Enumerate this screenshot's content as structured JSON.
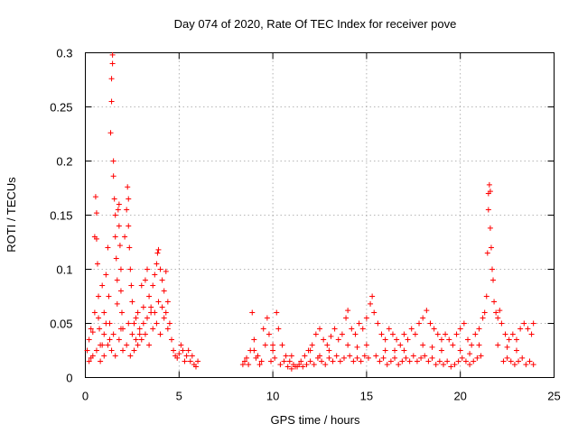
{
  "chart_data": {
    "type": "scatter",
    "title": "Day 074 of 2020, Rate Of TEC Index for receiver pove",
    "xlabel": "GPS time / hours",
    "ylabel": "ROTI / TECUs",
    "xlim": [
      0,
      25
    ],
    "ylim": [
      0,
      0.3
    ],
    "xticks": [
      "0",
      "5",
      "10",
      "15",
      "20",
      "25"
    ],
    "yticks": [
      "0",
      "0.05",
      "0.1",
      "0.15",
      "0.2",
      "0.25",
      "0.3"
    ],
    "grid": true,
    "marker": "+",
    "color": "#ff0000",
    "series": [
      {
        "points": [
          [
            0.1,
            0.025
          ],
          [
            0.2,
            0.035
          ],
          [
            0.3,
            0.018
          ],
          [
            0.4,
            0.042
          ],
          [
            0.5,
            0.06
          ],
          [
            0.5,
            0.13
          ],
          [
            0.55,
            0.167
          ],
          [
            0.6,
            0.152
          ],
          [
            0.6,
            0.128
          ],
          [
            0.65,
            0.105
          ],
          [
            0.7,
            0.075
          ],
          [
            0.75,
            0.045
          ],
          [
            0.8,
            0.03
          ],
          [
            0.9,
            0.085
          ],
          [
            1.0,
            0.06
          ],
          [
            1.0,
            0.04
          ],
          [
            1.1,
            0.095
          ],
          [
            1.2,
            0.12
          ],
          [
            1.25,
            0.075
          ],
          [
            1.3,
            0.05
          ],
          [
            1.35,
            0.226
          ],
          [
            1.4,
            0.255
          ],
          [
            1.4,
            0.276
          ],
          [
            1.45,
            0.29
          ],
          [
            1.45,
            0.298
          ],
          [
            1.5,
            0.2
          ],
          [
            1.5,
            0.186
          ],
          [
            1.55,
            0.165
          ],
          [
            1.6,
            0.15
          ],
          [
            1.6,
            0.13
          ],
          [
            1.65,
            0.11
          ],
          [
            1.7,
            0.09
          ],
          [
            1.7,
            0.068
          ],
          [
            1.75,
            0.155
          ],
          [
            1.8,
            0.16
          ],
          [
            1.8,
            0.14
          ],
          [
            1.85,
            0.122
          ],
          [
            1.9,
            0.1
          ],
          [
            1.9,
            0.08
          ],
          [
            1.95,
            0.06
          ],
          [
            2.0,
            0.045
          ],
          [
            2.1,
            0.13
          ],
          [
            2.2,
            0.155
          ],
          [
            2.25,
            0.176
          ],
          [
            2.3,
            0.165
          ],
          [
            2.3,
            0.14
          ],
          [
            2.35,
            0.12
          ],
          [
            2.4,
            0.1
          ],
          [
            2.45,
            0.085
          ],
          [
            2.5,
            0.07
          ],
          [
            2.6,
            0.05
          ],
          [
            2.7,
            0.035
          ],
          [
            2.8,
            0.06
          ],
          [
            2.9,
            0.04
          ],
          [
            3.0,
            0.085
          ],
          [
            3.1,
            0.065
          ],
          [
            3.2,
            0.09
          ],
          [
            3.3,
            0.1
          ],
          [
            3.4,
            0.075
          ],
          [
            3.5,
            0.06
          ],
          [
            3.6,
            0.085
          ],
          [
            3.7,
            0.095
          ],
          [
            3.8,
            0.105
          ],
          [
            3.85,
            0.115
          ],
          [
            3.9,
            0.118
          ],
          [
            4.0,
            0.1
          ],
          [
            4.1,
            0.09
          ],
          [
            4.2,
            0.08
          ],
          [
            4.3,
            0.098
          ],
          [
            4.4,
            0.07
          ],
          [
            4.5,
            0.05
          ],
          [
            4.6,
            0.035
          ],
          [
            4.7,
            0.025
          ],
          [
            4.8,
            0.02
          ],
          [
            4.9,
            0.018
          ],
          [
            5.0,
            0.022
          ],
          [
            5.2,
            0.025
          ],
          [
            5.4,
            0.02
          ],
          [
            5.6,
            0.015
          ],
          [
            5.8,
            0.012
          ],
          [
            6.0,
            0.015
          ],
          [
            5.1,
            0.03
          ],
          [
            5.3,
            0.015
          ],
          [
            5.5,
            0.025
          ],
          [
            5.7,
            0.02
          ],
          [
            5.9,
            0.01
          ],
          [
            0.2,
            0.015
          ],
          [
            0.4,
            0.02
          ],
          [
            0.6,
            0.025
          ],
          [
            0.8,
            0.015
          ],
          [
            1.0,
            0.02
          ],
          [
            1.2,
            0.03
          ],
          [
            1.4,
            0.025
          ],
          [
            1.6,
            0.02
          ],
          [
            1.8,
            0.035
          ],
          [
            2.0,
            0.025
          ],
          [
            2.2,
            0.03
          ],
          [
            2.4,
            0.02
          ],
          [
            2.6,
            0.025
          ],
          [
            2.8,
            0.03
          ],
          [
            3.0,
            0.035
          ],
          [
            3.2,
            0.04
          ],
          [
            3.4,
            0.03
          ],
          [
            3.6,
            0.045
          ],
          [
            3.8,
            0.05
          ],
          [
            4.0,
            0.04
          ],
          [
            4.2,
            0.055
          ],
          [
            4.4,
            0.045
          ],
          [
            0.3,
            0.045
          ],
          [
            0.7,
            0.055
          ],
          [
            1.1,
            0.05
          ],
          [
            1.5,
            0.04
          ],
          [
            1.9,
            0.045
          ],
          [
            2.3,
            0.05
          ],
          [
            2.7,
            0.055
          ],
          [
            3.1,
            0.05
          ],
          [
            3.5,
            0.065
          ],
          [
            3.9,
            0.07
          ],
          [
            4.3,
            0.06
          ],
          [
            2.5,
            0.04
          ],
          [
            2.9,
            0.045
          ],
          [
            3.3,
            0.055
          ],
          [
            3.7,
            0.06
          ],
          [
            4.1,
            0.065
          ],
          [
            1.3,
            0.035
          ],
          [
            0.9,
            0.03
          ],
          [
            8.4,
            0.012
          ],
          [
            8.6,
            0.018
          ],
          [
            8.8,
            0.025
          ],
          [
            8.9,
            0.06
          ],
          [
            9.0,
            0.035
          ],
          [
            9.2,
            0.02
          ],
          [
            9.4,
            0.015
          ],
          [
            9.5,
            0.045
          ],
          [
            9.6,
            0.03
          ],
          [
            9.7,
            0.055
          ],
          [
            9.8,
            0.04
          ],
          [
            10.0,
            0.025
          ],
          [
            10.2,
            0.06
          ],
          [
            10.3,
            0.045
          ],
          [
            10.5,
            0.03
          ],
          [
            10.7,
            0.02
          ],
          [
            10.9,
            0.015
          ],
          [
            11.1,
            0.012
          ],
          [
            11.3,
            0.01
          ],
          [
            11.5,
            0.015
          ],
          [
            11.7,
            0.02
          ],
          [
            11.9,
            0.025
          ],
          [
            12.1,
            0.03
          ],
          [
            12.3,
            0.04
          ],
          [
            12.5,
            0.045
          ],
          [
            12.7,
            0.035
          ],
          [
            12.9,
            0.03
          ],
          [
            13.1,
            0.038
          ],
          [
            13.3,
            0.045
          ],
          [
            13.5,
            0.035
          ],
          [
            13.7,
            0.04
          ],
          [
            13.9,
            0.055
          ],
          [
            14.0,
            0.062
          ],
          [
            14.2,
            0.045
          ],
          [
            14.4,
            0.04
          ],
          [
            14.6,
            0.05
          ],
          [
            14.8,
            0.045
          ],
          [
            15.0,
            0.055
          ],
          [
            15.2,
            0.068
          ],
          [
            15.3,
            0.075
          ],
          [
            15.4,
            0.06
          ],
          [
            15.6,
            0.05
          ],
          [
            15.8,
            0.04
          ],
          [
            16.0,
            0.035
          ],
          [
            16.2,
            0.045
          ],
          [
            16.4,
            0.04
          ],
          [
            16.6,
            0.035
          ],
          [
            16.8,
            0.03
          ],
          [
            17.0,
            0.04
          ],
          [
            17.2,
            0.035
          ],
          [
            17.4,
            0.045
          ],
          [
            17.6,
            0.04
          ],
          [
            17.8,
            0.05
          ],
          [
            18.0,
            0.055
          ],
          [
            18.2,
            0.062
          ],
          [
            18.4,
            0.05
          ],
          [
            18.6,
            0.045
          ],
          [
            18.8,
            0.04
          ],
          [
            19.0,
            0.035
          ],
          [
            19.2,
            0.04
          ],
          [
            19.4,
            0.035
          ],
          [
            19.6,
            0.03
          ],
          [
            19.8,
            0.04
          ],
          [
            20.0,
            0.045
          ],
          [
            20.2,
            0.05
          ],
          [
            20.4,
            0.035
          ],
          [
            20.6,
            0.03
          ],
          [
            20.8,
            0.04
          ],
          [
            21.0,
            0.045
          ],
          [
            21.2,
            0.055
          ],
          [
            21.3,
            0.06
          ],
          [
            21.4,
            0.075
          ],
          [
            21.45,
            0.115
          ],
          [
            21.5,
            0.155
          ],
          [
            21.5,
            0.17
          ],
          [
            21.55,
            0.178
          ],
          [
            21.6,
            0.172
          ],
          [
            21.6,
            0.138
          ],
          [
            21.65,
            0.12
          ],
          [
            21.7,
            0.1
          ],
          [
            21.75,
            0.09
          ],
          [
            21.8,
            0.07
          ],
          [
            21.9,
            0.06
          ],
          [
            22.0,
            0.055
          ],
          [
            22.1,
            0.062
          ],
          [
            22.2,
            0.05
          ],
          [
            22.4,
            0.04
          ],
          [
            22.6,
            0.035
          ],
          [
            22.8,
            0.04
          ],
          [
            23.0,
            0.035
          ],
          [
            23.2,
            0.045
          ],
          [
            23.4,
            0.05
          ],
          [
            23.6,
            0.045
          ],
          [
            23.8,
            0.04
          ],
          [
            23.9,
            0.05
          ],
          [
            8.5,
            0.015
          ],
          [
            8.7,
            0.012
          ],
          [
            9.1,
            0.018
          ],
          [
            9.3,
            0.012
          ],
          [
            9.9,
            0.015
          ],
          [
            10.1,
            0.018
          ],
          [
            10.4,
            0.012
          ],
          [
            10.6,
            0.015
          ],
          [
            10.8,
            0.01
          ],
          [
            11.0,
            0.008
          ],
          [
            11.2,
            0.01
          ],
          [
            11.4,
            0.012
          ],
          [
            11.6,
            0.01
          ],
          [
            11.8,
            0.012
          ],
          [
            12.0,
            0.015
          ],
          [
            12.2,
            0.012
          ],
          [
            12.4,
            0.018
          ],
          [
            12.6,
            0.015
          ],
          [
            12.8,
            0.012
          ],
          [
            13.0,
            0.018
          ],
          [
            13.2,
            0.015
          ],
          [
            13.4,
            0.02
          ],
          [
            13.6,
            0.015
          ],
          [
            13.8,
            0.018
          ],
          [
            14.1,
            0.02
          ],
          [
            14.3,
            0.015
          ],
          [
            14.5,
            0.018
          ],
          [
            14.7,
            0.015
          ],
          [
            14.9,
            0.02
          ],
          [
            15.1,
            0.018
          ],
          [
            15.5,
            0.02
          ],
          [
            15.7,
            0.015
          ],
          [
            15.9,
            0.018
          ],
          [
            16.1,
            0.012
          ],
          [
            16.3,
            0.015
          ],
          [
            16.5,
            0.018
          ],
          [
            16.7,
            0.012
          ],
          [
            16.9,
            0.015
          ],
          [
            17.1,
            0.018
          ],
          [
            17.3,
            0.015
          ],
          [
            17.5,
            0.02
          ],
          [
            17.7,
            0.015
          ],
          [
            17.9,
            0.018
          ],
          [
            18.1,
            0.02
          ],
          [
            18.3,
            0.015
          ],
          [
            18.5,
            0.018
          ],
          [
            18.7,
            0.012
          ],
          [
            18.9,
            0.015
          ],
          [
            19.1,
            0.012
          ],
          [
            19.3,
            0.015
          ],
          [
            19.5,
            0.01
          ],
          [
            19.7,
            0.012
          ],
          [
            19.9,
            0.015
          ],
          [
            20.1,
            0.018
          ],
          [
            20.3,
            0.015
          ],
          [
            20.5,
            0.012
          ],
          [
            20.7,
            0.015
          ],
          [
            20.9,
            0.018
          ],
          [
            21.1,
            0.02
          ],
          [
            22.3,
            0.015
          ],
          [
            22.5,
            0.018
          ],
          [
            22.7,
            0.015
          ],
          [
            22.9,
            0.012
          ],
          [
            23.1,
            0.015
          ],
          [
            23.3,
            0.018
          ],
          [
            23.5,
            0.012
          ],
          [
            23.7,
            0.015
          ],
          [
            23.9,
            0.012
          ],
          [
            9.0,
            0.025
          ],
          [
            10.0,
            0.03
          ],
          [
            11.0,
            0.02
          ],
          [
            12.0,
            0.025
          ],
          [
            13.0,
            0.025
          ],
          [
            14.0,
            0.03
          ],
          [
            15.0,
            0.03
          ],
          [
            16.0,
            0.025
          ],
          [
            17.0,
            0.025
          ],
          [
            18.0,
            0.03
          ],
          [
            19.0,
            0.025
          ],
          [
            20.0,
            0.025
          ],
          [
            21.0,
            0.03
          ],
          [
            22.0,
            0.03
          ],
          [
            23.0,
            0.025
          ],
          [
            12.5,
            0.02
          ],
          [
            14.5,
            0.028
          ],
          [
            16.5,
            0.025
          ],
          [
            18.5,
            0.028
          ],
          [
            20.5,
            0.022
          ],
          [
            22.5,
            0.028
          ]
        ]
      }
    ]
  }
}
